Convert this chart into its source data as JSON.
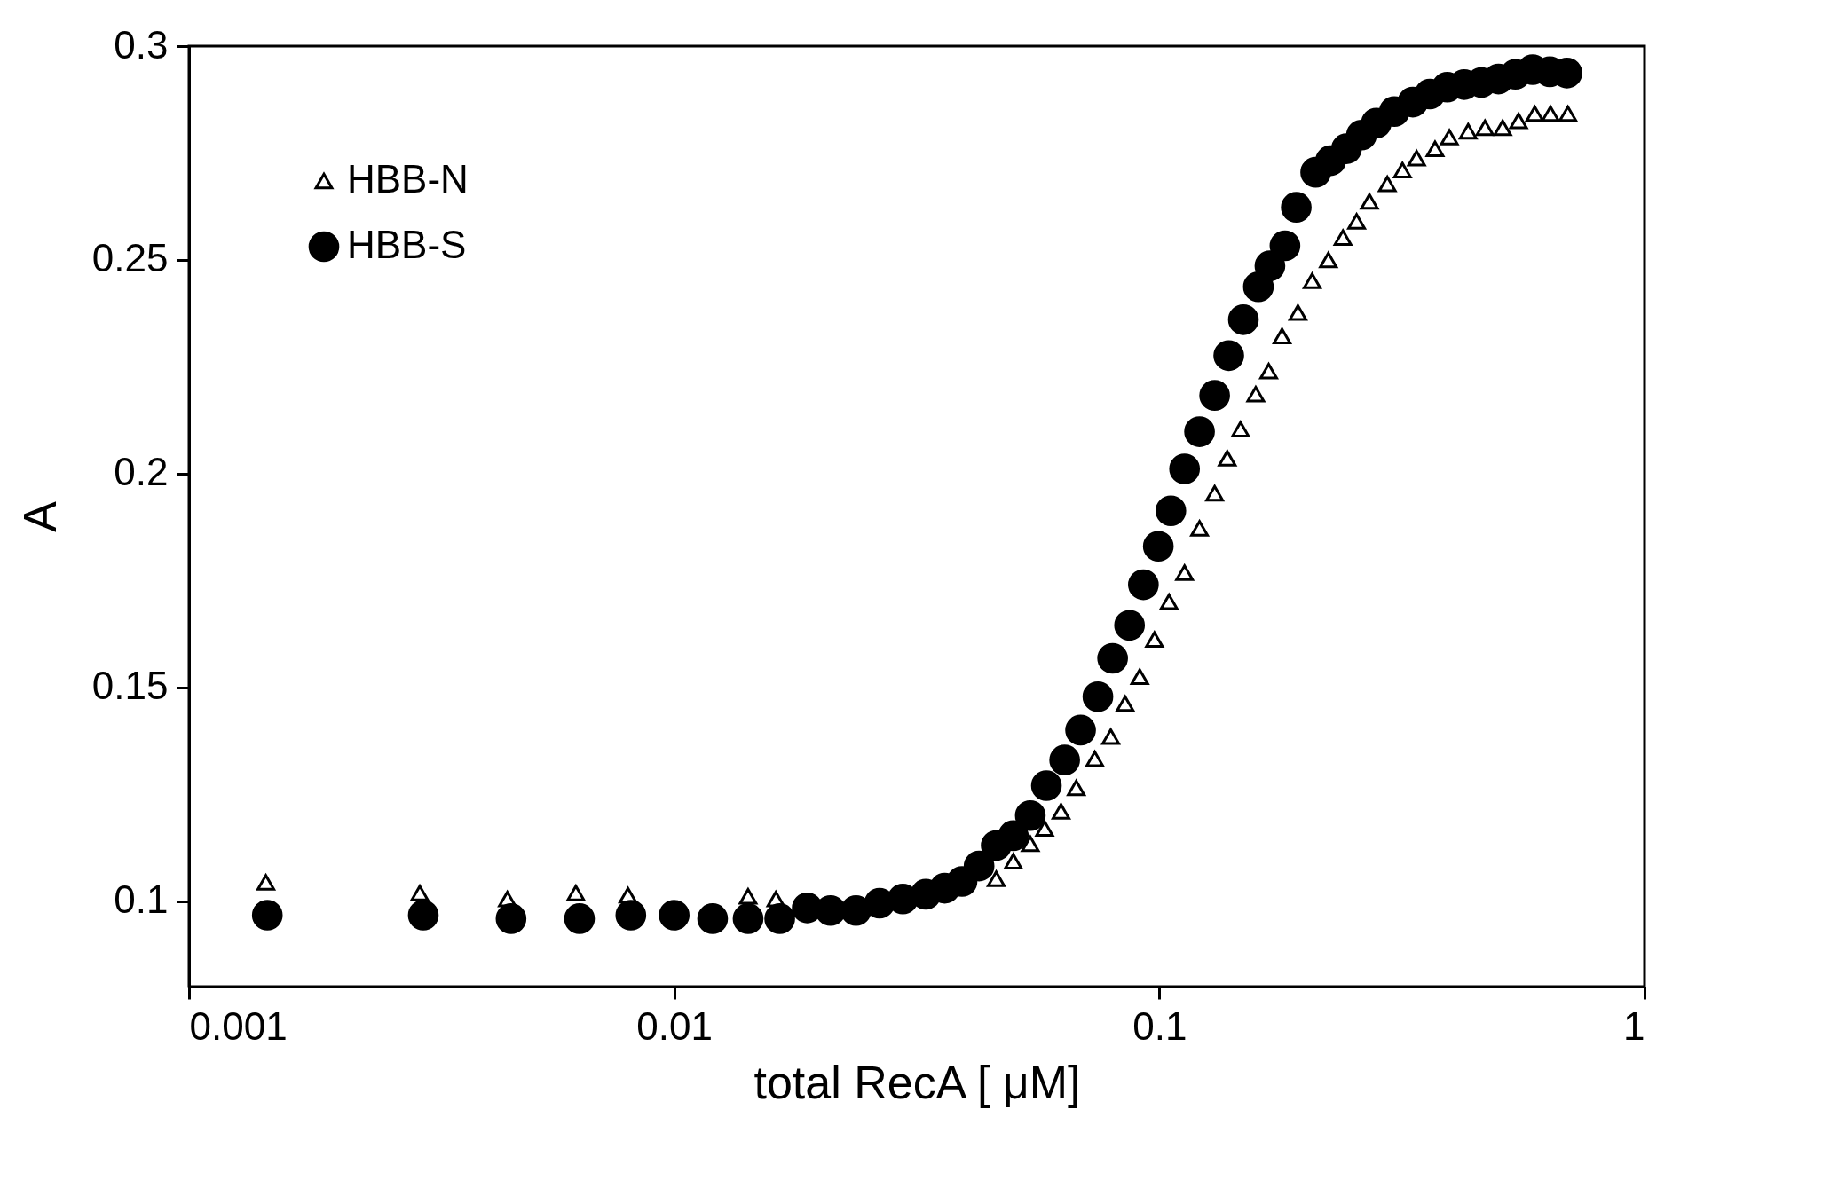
{
  "chart_data": {
    "type": "scatter",
    "xlabel": "total RecA [ μM]",
    "ylabel": "A",
    "log": "x",
    "xlim": [
      0.001,
      1
    ],
    "xticks": [
      0.001,
      0.01,
      0.1,
      1
    ],
    "ylim": [
      0.08,
      0.3
    ],
    "yticks": [
      0.1,
      0.15,
      0.2,
      0.25,
      0.3
    ],
    "grid": false,
    "legend": "top left",
    "series": [
      {
        "name": "HBB-N",
        "color": "#000000",
        "marker": "triangle",
        "x": [
          0.00144,
          0.00299,
          0.00453,
          0.00627,
          0.00803,
          0.0142,
          0.0162,
          0.0461,
          0.05,
          0.0542,
          0.058,
          0.0627,
          0.0674,
          0.0736,
          0.0794,
          0.085,
          0.0911,
          0.0977,
          0.1047,
          0.1127,
          0.121,
          0.13,
          0.138,
          0.147,
          0.158,
          0.168,
          0.179,
          0.193,
          0.2065,
          0.223,
          0.239,
          0.255,
          0.271,
          0.295,
          0.317,
          0.339,
          0.37,
          0.396,
          0.433,
          0.469,
          0.51,
          0.55,
          0.594,
          0.64,
          0.695
        ],
        "values": [
          0.1044,
          0.1019,
          0.1005,
          0.1019,
          0.1014,
          0.1011,
          0.1005,
          0.1052,
          0.1093,
          0.1134,
          0.117,
          0.121,
          0.1265,
          0.1333,
          0.1385,
          0.1462,
          0.1525,
          0.1612,
          0.17,
          0.1768,
          0.1872,
          0.1954,
          0.2036,
          0.2104,
          0.2186,
          0.224,
          0.2322,
          0.2377,
          0.2451,
          0.25,
          0.2552,
          0.259,
          0.2637,
          0.2678,
          0.271,
          0.2738,
          0.276,
          0.2787,
          0.2801,
          0.2809,
          0.2809,
          0.2825,
          0.2842,
          0.2842,
          0.2842
        ]
      },
      {
        "name": "HBB-S",
        "color": "#000000",
        "marker": "circle",
        "x": [
          0.00145,
          0.00304,
          0.00461,
          0.00638,
          0.00814,
          0.01,
          0.012,
          0.0142,
          0.0165,
          0.0188,
          0.021,
          0.0237,
          0.0265,
          0.0296,
          0.033,
          0.0361,
          0.0392,
          0.0425,
          0.0461,
          0.05,
          0.0542,
          0.0585,
          0.0638,
          0.0688,
          0.0747,
          0.0801,
          0.0868,
          0.0927,
          0.0995,
          0.1056,
          0.1127,
          0.121,
          0.13,
          0.139,
          0.149,
          0.16,
          0.169,
          0.1815,
          0.1915,
          0.21,
          0.2254,
          0.243,
          0.261,
          0.28,
          0.305,
          0.333,
          0.361,
          0.392,
          0.425,
          0.461,
          0.5,
          0.542,
          0.588,
          0.638,
          0.692
        ],
        "values": [
          0.0967,
          0.0967,
          0.0959,
          0.0959,
          0.0967,
          0.0967,
          0.0959,
          0.0959,
          0.0959,
          0.0984,
          0.0978,
          0.0978,
          0.0995,
          0.1005,
          0.1016,
          0.103,
          0.1046,
          0.1082,
          0.113,
          0.1153,
          0.12,
          0.127,
          0.133,
          0.14,
          0.1478,
          0.1568,
          0.1645,
          0.174,
          0.183,
          0.1913,
          0.2011,
          0.2098,
          0.2183,
          0.2276,
          0.236,
          0.2437,
          0.2486,
          0.2533,
          0.2623,
          0.2705,
          0.2732,
          0.276,
          0.2792,
          0.282,
          0.2847,
          0.2869,
          0.2888,
          0.2904,
          0.291,
          0.2915,
          0.2923,
          0.2934,
          0.2945,
          0.294,
          0.2937
        ]
      }
    ]
  }
}
